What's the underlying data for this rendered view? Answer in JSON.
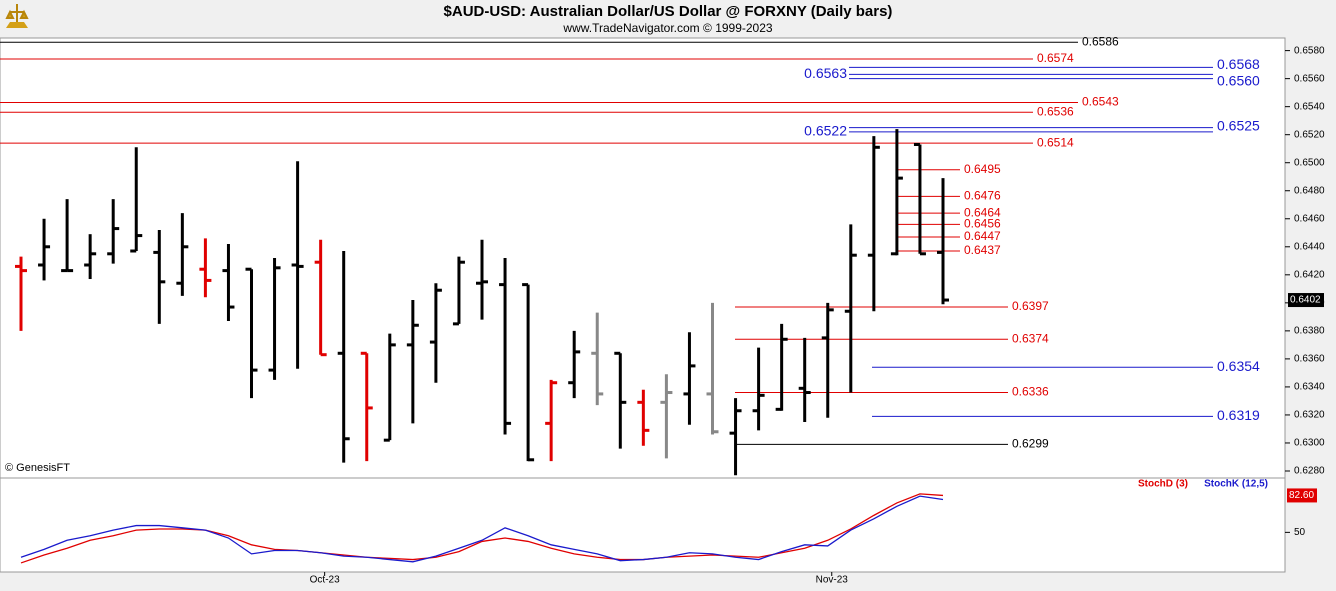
{
  "chart_data": {
    "type": "ohlc",
    "title": "$AUD-USD:  Australian Dollar/US Dollar @ FORXNY  (Daily bars)",
    "subtitle": "www.TradeNavigator.com © 1999-2023",
    "watermark": "© GenesisFT",
    "categories": [
      null,
      null,
      null,
      null,
      null,
      null,
      null,
      null,
      null,
      null,
      null,
      null,
      null,
      "Oct-23",
      null,
      null,
      null,
      null,
      null,
      null,
      null,
      null,
      null,
      null,
      null,
      null,
      null,
      null,
      null,
      null,
      null,
      null,
      null,
      null,
      null,
      "Nov-23",
      null,
      null,
      null,
      null,
      null
    ],
    "open": [
      0.6426,
      0.6427,
      0.6423,
      0.6427,
      0.6435,
      0.6437,
      0.6436,
      0.6414,
      0.6424,
      0.6423,
      0.6424,
      0.6352,
      0.6427,
      0.6429,
      0.6364,
      0.6364,
      0.6302,
      0.637,
      0.6372,
      0.6385,
      0.6414,
      0.6413,
      0.6413,
      0.6314,
      0.6343,
      0.6364,
      0.6364,
      0.6329,
      0.6329,
      0.6335,
      0.6335,
      0.6307,
      0.6323,
      0.6324,
      0.6339,
      0.6375,
      0.6394,
      0.6434,
      0.6435,
      0.6513,
      0.6436
    ],
    "high": [
      0.6433,
      0.646,
      0.6474,
      0.6449,
      0.6474,
      0.6511,
      0.6452,
      0.6464,
      0.6446,
      0.6442,
      0.6424,
      0.6432,
      0.6501,
      0.6445,
      0.6437,
      0.6364,
      0.6378,
      0.6402,
      0.6414,
      0.6433,
      0.6445,
      0.6432,
      0.6413,
      0.6345,
      0.638,
      0.6393,
      0.6364,
      0.6338,
      0.6349,
      0.6379,
      0.64,
      0.6332,
      0.6368,
      0.6385,
      0.6375,
      0.64,
      0.6456,
      0.6519,
      0.6524,
      0.6513,
      0.6489
    ],
    "low": [
      0.638,
      0.6416,
      0.6423,
      0.6417,
      0.6428,
      0.6437,
      0.6385,
      0.6405,
      0.6404,
      0.6387,
      0.6332,
      0.6345,
      0.6353,
      0.6363,
      0.6286,
      0.6287,
      0.6302,
      0.6314,
      0.6343,
      0.6385,
      0.6388,
      0.6306,
      0.6287,
      0.6287,
      0.6332,
      0.6327,
      0.6296,
      0.6298,
      0.6289,
      0.6313,
      0.6306,
      0.6277,
      0.6309,
      0.6323,
      0.6315,
      0.6318,
      0.6336,
      0.6394,
      0.6434,
      0.6435,
      0.6399
    ],
    "close": [
      0.6423,
      0.644,
      0.6423,
      0.6435,
      0.6453,
      0.6448,
      0.6415,
      0.644,
      0.6416,
      0.6397,
      0.6352,
      0.6425,
      0.6426,
      0.6363,
      0.6303,
      0.6325,
      0.637,
      0.6384,
      0.6409,
      0.6429,
      0.6415,
      0.6314,
      0.6288,
      0.6343,
      0.6365,
      0.6335,
      0.6329,
      0.6309,
      0.6336,
      0.6355,
      0.6308,
      0.6323,
      0.6334,
      0.6374,
      0.6336,
      0.6395,
      0.6434,
      0.6511,
      0.6489,
      0.6435,
      0.6402
    ],
    "colors": [
      "#e00000",
      "#000000",
      "#000000",
      "#000000",
      "#000000",
      "#000000",
      "#000000",
      "#000000",
      "#e00000",
      "#000000",
      "#000000",
      "#000000",
      "#000000",
      "#e00000",
      "#000000",
      "#e00000",
      "#000000",
      "#000000",
      "#000000",
      "#000000",
      "#000000",
      "#000000",
      "#000000",
      "#e00000",
      "#000000",
      "#888888",
      "#000000",
      "#e00000",
      "#888888",
      "#000000",
      "#888888",
      "#000000",
      "#000000",
      "#000000",
      "#000000",
      "#000000",
      "#000000",
      "#000000",
      "#000000",
      "#000000",
      "#000000"
    ],
    "ylim": [
      0.6275,
      0.6589
    ],
    "yticks": [
      {
        "value": 0.628,
        "label": "0.6280"
      },
      {
        "value": 0.63,
        "label": "0.6300"
      },
      {
        "value": 0.632,
        "label": "0.6320"
      },
      {
        "value": 0.634,
        "label": "0.6340"
      },
      {
        "value": 0.636,
        "label": "0.6360"
      },
      {
        "value": 0.638,
        "label": "0.6380"
      },
      {
        "value": 0.64,
        "label": "0.6400"
      },
      {
        "value": 0.642,
        "label": "0.6420"
      },
      {
        "value": 0.644,
        "label": "0.6440"
      },
      {
        "value": 0.646,
        "label": "0.6460"
      },
      {
        "value": 0.648,
        "label": "0.6480"
      },
      {
        "value": 0.65,
        "label": "0.6500"
      },
      {
        "value": 0.652,
        "label": "0.6520"
      },
      {
        "value": 0.654,
        "label": "0.6540"
      },
      {
        "value": 0.656,
        "label": "0.6560"
      },
      {
        "value": 0.658,
        "label": "0.6580"
      }
    ],
    "levels": [
      {
        "value": 0.6586,
        "label": "0.6586",
        "color": "#000000"
      },
      {
        "value": 0.6574,
        "label": "0.6574",
        "color": "#e00000"
      },
      {
        "value": 0.6568,
        "label": "0.6568",
        "color": "#1a1acc"
      },
      {
        "value": 0.6563,
        "label": "0.6563",
        "color": "#1a1acc"
      },
      {
        "value": 0.656,
        "label": "0.6560",
        "color": "#1a1acc"
      },
      {
        "value": 0.6543,
        "label": "0.6543",
        "color": "#e00000"
      },
      {
        "value": 0.6536,
        "label": "0.6536",
        "color": "#e00000"
      },
      {
        "value": 0.6525,
        "label": "0.6525",
        "color": "#1a1acc"
      },
      {
        "value": 0.6522,
        "label": "0.6522",
        "color": "#1a1acc"
      },
      {
        "value": 0.6514,
        "label": "0.6514",
        "color": "#e00000"
      },
      {
        "value": 0.6495,
        "label": "0.6495",
        "color": "#e00000"
      },
      {
        "value": 0.6476,
        "label": "0.6476",
        "color": "#e00000"
      },
      {
        "value": 0.6464,
        "label": "0.6464",
        "color": "#e00000"
      },
      {
        "value": 0.6456,
        "label": "0.6456",
        "color": "#e00000"
      },
      {
        "value": 0.6447,
        "label": "0.6447",
        "color": "#e00000"
      },
      {
        "value": 0.6437,
        "label": "0.6437",
        "color": "#e00000"
      },
      {
        "value": 0.6397,
        "label": "0.6397",
        "color": "#e00000"
      },
      {
        "value": 0.6374,
        "label": "0.6374",
        "color": "#e00000"
      },
      {
        "value": 0.6354,
        "label": "0.6354",
        "color": "#1a1acc"
      },
      {
        "value": 0.6336,
        "label": "0.6336",
        "color": "#e00000"
      },
      {
        "value": 0.6319,
        "label": "0.6319",
        "color": "#1a1acc"
      },
      {
        "value": 0.6299,
        "label": "0.6299",
        "color": "#000000"
      }
    ],
    "indicator": {
      "type": "line",
      "series": [
        {
          "name": "StochD (3)",
          "color": "#e00000",
          "values": [
            23,
            30,
            36,
            43,
            47,
            52,
            53,
            53,
            52,
            47,
            39,
            35,
            34,
            32,
            30,
            28,
            27,
            26,
            28,
            33,
            42,
            45,
            42,
            36,
            31,
            28,
            26,
            26,
            28,
            29,
            30,
            29,
            28,
            32,
            36,
            43,
            53,
            65,
            76,
            84,
            82.6
          ],
          "value_labels": [
            null,
            null,
            null,
            null,
            null,
            null,
            null,
            null,
            null,
            null,
            null,
            null,
            null,
            null,
            null,
            null,
            null,
            null,
            null,
            null,
            null,
            null,
            null,
            null,
            null,
            null,
            null,
            null,
            null,
            null,
            null,
            null,
            null,
            null,
            null,
            null,
            null,
            null,
            null,
            null,
            "82.60"
          ]
        },
        {
          "name": "StochK (12,5)",
          "color": "#1a1acc",
          "values": [
            28,
            35,
            43,
            47,
            52,
            56,
            56,
            54,
            52,
            45,
            31,
            34,
            34,
            32,
            29,
            28,
            26,
            24,
            29,
            36,
            43,
            54,
            47,
            39,
            35,
            31,
            25,
            26,
            28,
            32,
            31,
            28,
            26,
            33,
            39,
            38,
            52,
            62,
            73,
            82,
            79
          ]
        }
      ],
      "ylim": [
        15,
        98
      ],
      "yticks": [
        50
      ]
    }
  }
}
